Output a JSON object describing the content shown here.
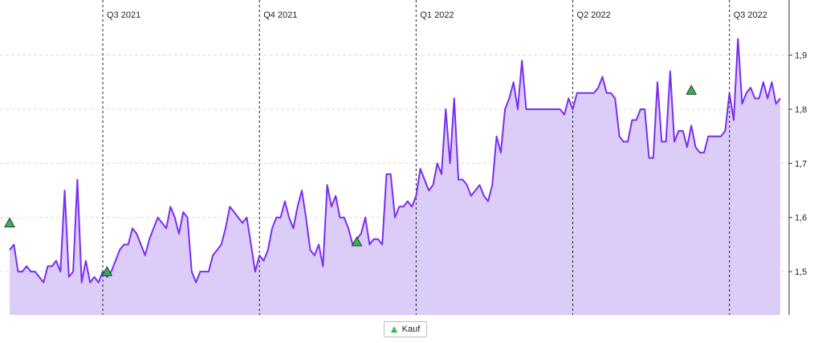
{
  "chart_data": {
    "type": "area",
    "title": "",
    "xlabel": "",
    "ylabel": "",
    "ylim": [
      1.42,
      1.99
    ],
    "y_ticks": [
      "1,5",
      "1,6",
      "1,7",
      "1,8",
      "1,9"
    ],
    "y_tick_values": [
      1.5,
      1.6,
      1.7,
      1.8,
      1.9
    ],
    "grid": "horizontal dashed",
    "quarter_markers": [
      {
        "label": "Q3 2021",
        "index": 22
      },
      {
        "label": "Q4 2021",
        "index": 59
      },
      {
        "label": "Q1 2022",
        "index": 96
      },
      {
        "label": "Q2 2022",
        "index": 133
      },
      {
        "label": "Q3 2022",
        "index": 170
      }
    ],
    "series": [
      {
        "name": "",
        "color": "#7a2ff0",
        "fill": "#dcccf8",
        "values": [
          1.54,
          1.55,
          1.5,
          1.5,
          1.51,
          1.5,
          1.5,
          1.49,
          1.48,
          1.51,
          1.51,
          1.52,
          1.5,
          1.65,
          1.49,
          1.5,
          1.67,
          1.48,
          1.52,
          1.48,
          1.49,
          1.48,
          1.5,
          1.49,
          1.5,
          1.52,
          1.54,
          1.55,
          1.55,
          1.58,
          1.57,
          1.55,
          1.53,
          1.56,
          1.58,
          1.6,
          1.59,
          1.58,
          1.62,
          1.6,
          1.57,
          1.61,
          1.6,
          1.5,
          1.48,
          1.5,
          1.5,
          1.5,
          1.53,
          1.54,
          1.55,
          1.58,
          1.62,
          1.61,
          1.6,
          1.59,
          1.6,
          1.55,
          1.5,
          1.53,
          1.52,
          1.54,
          1.58,
          1.6,
          1.6,
          1.63,
          1.6,
          1.58,
          1.62,
          1.65,
          1.6,
          1.54,
          1.53,
          1.55,
          1.51,
          1.66,
          1.62,
          1.64,
          1.6,
          1.6,
          1.58,
          1.55,
          1.56,
          1.57,
          1.6,
          1.55,
          1.56,
          1.56,
          1.55,
          1.68,
          1.68,
          1.6,
          1.62,
          1.62,
          1.63,
          1.62,
          1.64,
          1.69,
          1.67,
          1.65,
          1.66,
          1.7,
          1.68,
          1.8,
          1.7,
          1.82,
          1.67,
          1.67,
          1.66,
          1.64,
          1.65,
          1.66,
          1.64,
          1.63,
          1.66,
          1.75,
          1.72,
          1.8,
          1.82,
          1.85,
          1.8,
          1.89,
          1.8,
          1.8,
          1.8,
          1.8,
          1.8,
          1.8,
          1.8,
          1.8,
          1.8,
          1.79,
          1.82,
          1.8,
          1.83,
          1.83,
          1.83,
          1.83,
          1.83,
          1.84,
          1.86,
          1.83,
          1.83,
          1.82,
          1.75,
          1.74,
          1.74,
          1.78,
          1.78,
          1.8,
          1.8,
          1.71,
          1.71,
          1.85,
          1.74,
          1.74,
          1.87,
          1.74,
          1.76,
          1.76,
          1.73,
          1.77,
          1.73,
          1.72,
          1.72,
          1.75,
          1.75,
          1.75,
          1.75,
          1.76,
          1.83,
          1.78,
          1.93,
          1.81,
          1.83,
          1.84,
          1.82,
          1.82,
          1.85,
          1.82,
          1.85,
          1.81,
          1.82
        ]
      }
    ],
    "buy_markers": [
      {
        "index": 0,
        "value": 1.59
      },
      {
        "index": 23,
        "value": 1.5
      },
      {
        "index": 82,
        "value": 1.555
      },
      {
        "index": 161,
        "value": 1.835
      }
    ],
    "legend": {
      "label": "Kauf",
      "position": "bottom-center",
      "marker_color": "#2db84d"
    }
  }
}
